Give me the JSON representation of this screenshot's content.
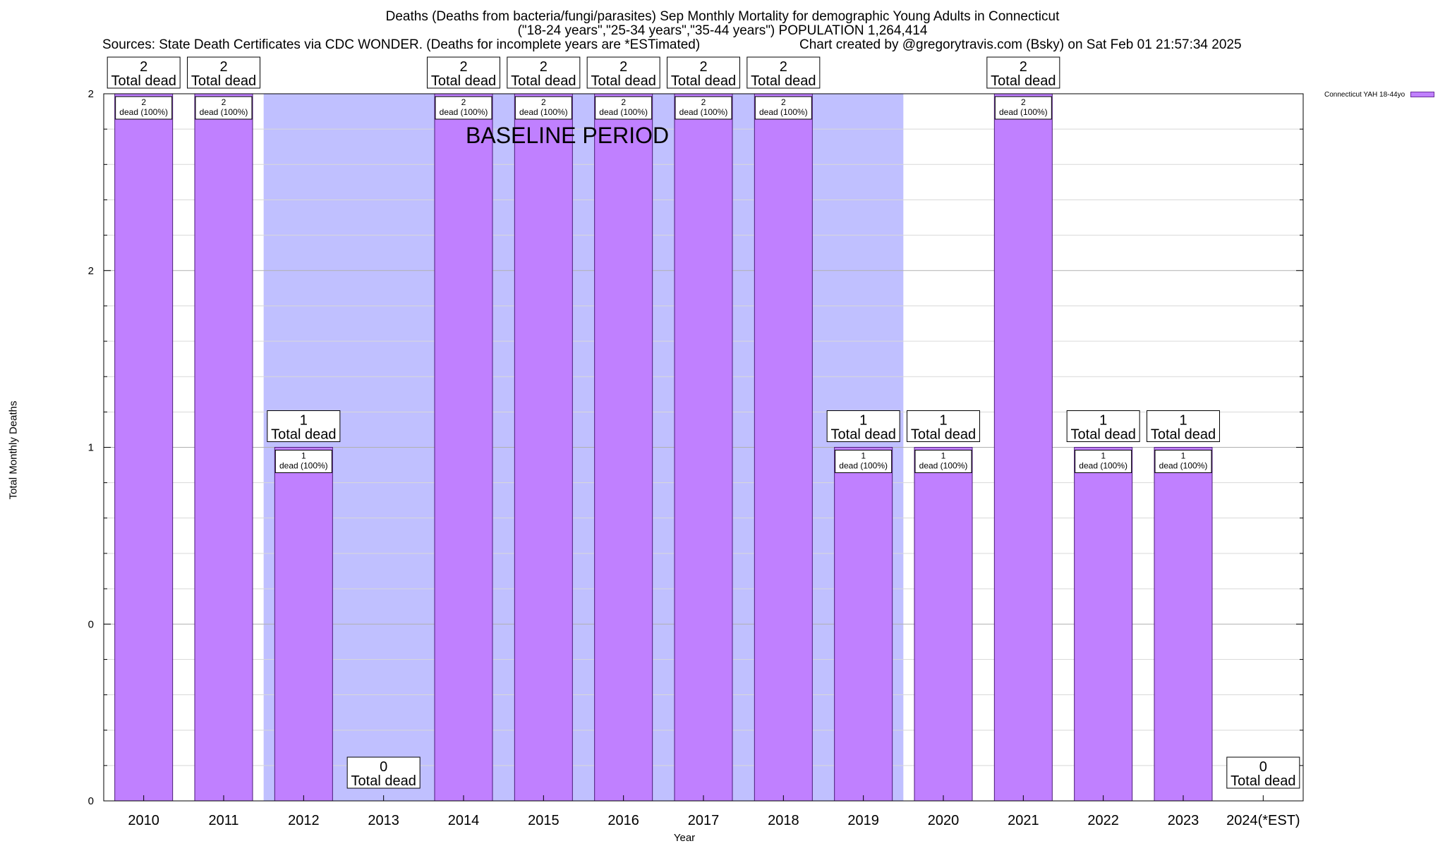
{
  "header": {
    "title_line1": "Deaths (Deaths from bacteria/fungi/parasites) Sep Monthly Mortality for demographic Young Adults in Connecticut",
    "title_line2": "(\"18-24 years\",\"25-34 years\",\"35-44 years\") POPULATION 1,264,414",
    "sources": "Sources: State Death Certificates via CDC WONDER. (Deaths for incomplete years are *ESTimated)",
    "credit": "Chart created by @gregorytravis.com (Bsky) on Sat Feb 01 21:57:34 2025"
  },
  "chart_data": {
    "type": "bar",
    "ylabel": "Total Monthly Deaths",
    "xlabel": "Year",
    "ylim": [
      0,
      2
    ],
    "yticks": [
      0,
      0.5,
      1,
      1.5,
      2
    ],
    "ytick_labels": [
      "0",
      "0",
      "1",
      "2",
      "2"
    ],
    "grid": true,
    "legend_position": "top-right",
    "categories": [
      "2010",
      "2011",
      "2012",
      "2013",
      "2014",
      "2015",
      "2016",
      "2017",
      "2018",
      "2019",
      "2020",
      "2021",
      "2022",
      "2023",
      "2024(*EST)"
    ],
    "series": [
      {
        "name": "Connecticut YAH 18-44yo",
        "color": "#c080ff",
        "values": [
          2,
          2,
          1,
          0,
          2,
          2,
          2,
          2,
          2,
          1,
          1,
          2,
          1,
          1,
          0
        ]
      }
    ],
    "total_labels": [
      "2\nTotal dead",
      "2\nTotal dead",
      "1\nTotal dead",
      "0\nTotal dead",
      "2\nTotal dead",
      "2\nTotal dead",
      "2\nTotal dead",
      "2\nTotal dead",
      "2\nTotal dead",
      "1\nTotal dead",
      "1\nTotal dead",
      "2\nTotal dead",
      "1\nTotal dead",
      "1\nTotal dead",
      "0\nTotal dead"
    ],
    "bar_labels": [
      "2\ndead (100%)",
      "2\ndead (100%)",
      "1\ndead (100%)",
      "",
      "2\ndead (100%)",
      "2\ndead (100%)",
      "2\ndead (100%)",
      "2\ndead (100%)",
      "2\ndead (100%)",
      "1\ndead (100%)",
      "1\ndead (100%)",
      "2\ndead (100%)",
      "1\ndead (100%)",
      "1\ndead (100%)",
      ""
    ],
    "baseline_period": {
      "label": "BASELINE PERIOD",
      "start": "2012",
      "end": "2019",
      "color": "#c0c0ff"
    }
  }
}
